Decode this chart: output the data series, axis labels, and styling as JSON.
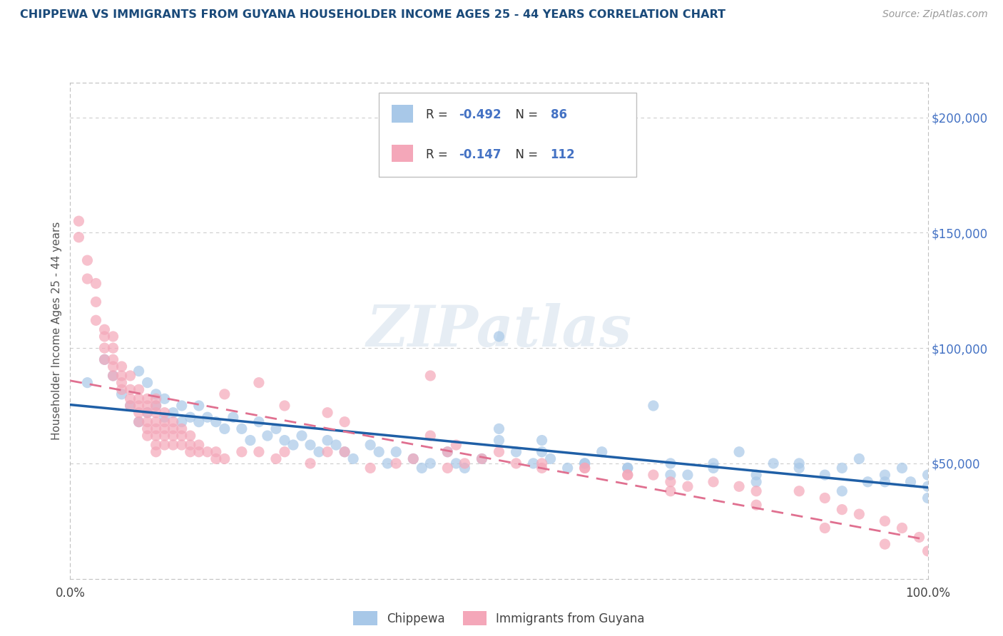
{
  "title": "CHIPPEWA VS IMMIGRANTS FROM GUYANA HOUSEHOLDER INCOME AGES 25 - 44 YEARS CORRELATION CHART",
  "source": "Source: ZipAtlas.com",
  "ylabel": "Householder Income Ages 25 - 44 years",
  "y_tick_labels": [
    "$50,000",
    "$100,000",
    "$150,000",
    "$200,000"
  ],
  "y_tick_values": [
    50000,
    100000,
    150000,
    200000
  ],
  "watermark": "ZIPatlas",
  "r1": "-0.492",
  "n1": "86",
  "r2": "-0.147",
  "n2": "112",
  "color_blue": "#a8c8e8",
  "color_pink": "#f4a7b9",
  "color_blue_line": "#1f5fa6",
  "color_pink_line": "#e07090",
  "color_title": "#1a4a7a",
  "color_source": "#999999",
  "color_rn_values": "#4472c4",
  "legend_label1": "Chippewa",
  "legend_label2": "Immigrants from Guyana",
  "blue_x": [
    0.02,
    0.04,
    0.05,
    0.06,
    0.07,
    0.08,
    0.08,
    0.09,
    0.09,
    0.1,
    0.1,
    0.11,
    0.11,
    0.12,
    0.13,
    0.13,
    0.14,
    0.15,
    0.15,
    0.16,
    0.17,
    0.18,
    0.19,
    0.2,
    0.21,
    0.22,
    0.23,
    0.24,
    0.25,
    0.26,
    0.27,
    0.28,
    0.29,
    0.3,
    0.31,
    0.32,
    0.33,
    0.35,
    0.36,
    0.37,
    0.38,
    0.4,
    0.41,
    0.42,
    0.44,
    0.45,
    0.46,
    0.48,
    0.5,
    0.5,
    0.52,
    0.54,
    0.55,
    0.56,
    0.58,
    0.6,
    0.62,
    0.65,
    0.68,
    0.7,
    0.72,
    0.75,
    0.78,
    0.8,
    0.82,
    0.85,
    0.88,
    0.9,
    0.92,
    0.93,
    0.95,
    0.97,
    0.98,
    1.0,
    1.0,
    0.5,
    0.55,
    0.6,
    0.65,
    0.7,
    0.75,
    0.8,
    0.85,
    0.9,
    0.95,
    1.0
  ],
  "blue_y": [
    85000,
    95000,
    88000,
    80000,
    75000,
    90000,
    68000,
    85000,
    72000,
    75000,
    80000,
    70000,
    78000,
    72000,
    68000,
    75000,
    70000,
    68000,
    75000,
    70000,
    68000,
    65000,
    70000,
    65000,
    60000,
    68000,
    62000,
    65000,
    60000,
    58000,
    62000,
    58000,
    55000,
    60000,
    58000,
    55000,
    52000,
    58000,
    55000,
    50000,
    55000,
    52000,
    48000,
    50000,
    55000,
    50000,
    48000,
    52000,
    60000,
    105000,
    55000,
    50000,
    60000,
    52000,
    48000,
    50000,
    55000,
    48000,
    75000,
    50000,
    45000,
    50000,
    55000,
    45000,
    50000,
    50000,
    45000,
    48000,
    52000,
    42000,
    45000,
    48000,
    42000,
    45000,
    40000,
    65000,
    55000,
    50000,
    48000,
    45000,
    48000,
    42000,
    48000,
    38000,
    42000,
    35000
  ],
  "pink_x": [
    0.01,
    0.01,
    0.02,
    0.02,
    0.03,
    0.03,
    0.03,
    0.04,
    0.04,
    0.04,
    0.04,
    0.05,
    0.05,
    0.05,
    0.05,
    0.05,
    0.06,
    0.06,
    0.06,
    0.06,
    0.07,
    0.07,
    0.07,
    0.07,
    0.08,
    0.08,
    0.08,
    0.08,
    0.08,
    0.09,
    0.09,
    0.09,
    0.09,
    0.09,
    0.09,
    0.1,
    0.1,
    0.1,
    0.1,
    0.1,
    0.1,
    0.1,
    0.1,
    0.11,
    0.11,
    0.11,
    0.11,
    0.11,
    0.12,
    0.12,
    0.12,
    0.12,
    0.13,
    0.13,
    0.13,
    0.14,
    0.14,
    0.14,
    0.15,
    0.15,
    0.16,
    0.17,
    0.17,
    0.18,
    0.18,
    0.2,
    0.22,
    0.22,
    0.24,
    0.25,
    0.28,
    0.3,
    0.32,
    0.35,
    0.38,
    0.4,
    0.42,
    0.44,
    0.46,
    0.48,
    0.52,
    0.55,
    0.6,
    0.65,
    0.68,
    0.7,
    0.72,
    0.75,
    0.78,
    0.8,
    0.85,
    0.88,
    0.9,
    0.92,
    0.95,
    0.97,
    0.99,
    1.0,
    0.42,
    0.44,
    0.25,
    0.3,
    0.32,
    0.45,
    0.5,
    0.55,
    0.6,
    0.65,
    0.7,
    0.8,
    0.88,
    0.95
  ],
  "pink_y": [
    155000,
    148000,
    138000,
    130000,
    128000,
    120000,
    112000,
    108000,
    105000,
    100000,
    95000,
    105000,
    100000,
    95000,
    92000,
    88000,
    92000,
    88000,
    85000,
    82000,
    88000,
    82000,
    78000,
    75000,
    82000,
    78000,
    75000,
    72000,
    68000,
    78000,
    75000,
    72000,
    68000,
    65000,
    62000,
    78000,
    75000,
    72000,
    68000,
    65000,
    62000,
    58000,
    55000,
    72000,
    68000,
    65000,
    62000,
    58000,
    68000,
    65000,
    62000,
    58000,
    65000,
    62000,
    58000,
    62000,
    58000,
    55000,
    58000,
    55000,
    55000,
    55000,
    52000,
    52000,
    80000,
    55000,
    55000,
    85000,
    52000,
    55000,
    50000,
    55000,
    55000,
    48000,
    50000,
    52000,
    88000,
    48000,
    50000,
    52000,
    50000,
    48000,
    48000,
    45000,
    45000,
    42000,
    40000,
    42000,
    40000,
    38000,
    38000,
    35000,
    30000,
    28000,
    25000,
    22000,
    18000,
    12000,
    62000,
    55000,
    75000,
    72000,
    68000,
    58000,
    55000,
    50000,
    48000,
    45000,
    38000,
    32000,
    22000,
    15000
  ]
}
